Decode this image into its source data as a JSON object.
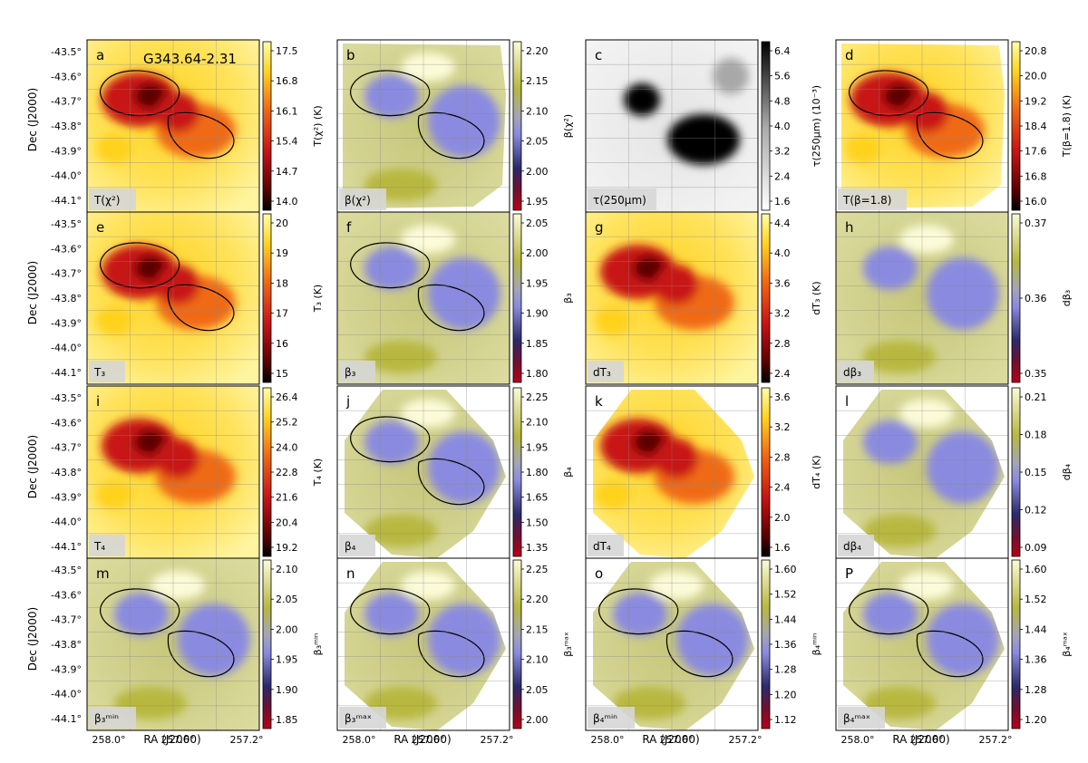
{
  "figure": {
    "source_name": "G343.64-2.31",
    "x_label": "RA (J2000)",
    "y_label": "Dec (J2000)",
    "x_ticks": [
      "258.0°",
      "257.6°",
      "257.2°"
    ],
    "y_ticks": [
      "-43.5°",
      "-43.6°",
      "-43.7°",
      "-43.8°",
      "-43.9°",
      "-44.0°",
      "-44.1°"
    ]
  },
  "chart_data": [
    {
      "type": "heatmap",
      "letter": "a",
      "box_label": "T(χ²)",
      "colorbar_label": "T(χ²) (K)",
      "colormap": "hot",
      "colorbar_ticks": [
        "17.5",
        "16.8",
        "16.1",
        "15.4",
        "14.7",
        "14.0"
      ],
      "contours": true
    },
    {
      "type": "heatmap",
      "letter": "b",
      "box_label": "β(χ²)",
      "colorbar_label": "β(χ²)",
      "colormap": "beta",
      "colorbar_ticks": [
        "2.20",
        "2.15",
        "2.10",
        "2.05",
        "2.00",
        "1.95"
      ],
      "contours": true
    },
    {
      "type": "heatmap",
      "letter": "c",
      "box_label": "τ(250μm)",
      "colorbar_label": "τ(250μm) (10⁻³)",
      "colormap": "gray",
      "colorbar_ticks": [
        "6.4",
        "5.6",
        "4.8",
        "4.0",
        "3.2",
        "2.4",
        "1.6"
      ],
      "contours": false
    },
    {
      "type": "heatmap",
      "letter": "d",
      "box_label": "T(β=1.8)",
      "colorbar_label": "T(β=1.8) (K)",
      "colormap": "hot",
      "colorbar_ticks": [
        "20.8",
        "20.0",
        "19.2",
        "18.4",
        "17.6",
        "16.8",
        "16.0"
      ],
      "contours": true
    },
    {
      "type": "heatmap",
      "letter": "e",
      "box_label": "T₃",
      "colorbar_label": "T₃ (K)",
      "colormap": "hot",
      "colorbar_ticks": [
        "20",
        "19",
        "18",
        "17",
        "16",
        "15"
      ],
      "contours": true
    },
    {
      "type": "heatmap",
      "letter": "f",
      "box_label": "β₃",
      "colorbar_label": "β₃",
      "colormap": "beta",
      "colorbar_ticks": [
        "2.05",
        "2.00",
        "1.95",
        "1.90",
        "1.85",
        "1.80"
      ],
      "contours": true
    },
    {
      "type": "heatmap",
      "letter": "g",
      "box_label": "dT₃",
      "colorbar_label": "dT₃ (K)",
      "colormap": "hot",
      "colorbar_ticks": [
        "4.4",
        "4.0",
        "3.6",
        "3.2",
        "2.8",
        "2.4"
      ],
      "contours": false
    },
    {
      "type": "heatmap",
      "letter": "h",
      "box_label": "dβ₃",
      "colorbar_label": "dβ₃",
      "colormap": "beta",
      "colorbar_ticks": [
        "0.37",
        "0.36",
        "0.35"
      ],
      "contours": false
    },
    {
      "type": "heatmap",
      "letter": "i",
      "box_label": "T₄",
      "colorbar_label": "T₄ (K)",
      "colormap": "hot",
      "colorbar_ticks": [
        "26.4",
        "25.2",
        "24.0",
        "22.8",
        "21.6",
        "20.4",
        "19.2"
      ],
      "contours": false
    },
    {
      "type": "heatmap",
      "letter": "j",
      "box_label": "β₄",
      "colorbar_label": "β₄",
      "colormap": "beta",
      "colorbar_ticks": [
        "2.25",
        "2.10",
        "1.95",
        "1.80",
        "1.65",
        "1.50",
        "1.35"
      ],
      "contours": true
    },
    {
      "type": "heatmap",
      "letter": "k",
      "box_label": "dT₄",
      "colorbar_label": "dT₄ (K)",
      "colormap": "hot",
      "colorbar_ticks": [
        "3.6",
        "3.2",
        "2.8",
        "2.4",
        "2.0",
        "1.6"
      ],
      "contours": false
    },
    {
      "type": "heatmap",
      "letter": "l",
      "box_label": "dβ₄",
      "colorbar_label": "dβ₄",
      "colormap": "beta",
      "colorbar_ticks": [
        "0.21",
        "0.18",
        "0.15",
        "0.12",
        "0.09"
      ],
      "contours": false
    },
    {
      "type": "heatmap",
      "letter": "m",
      "box_label": "β₃ᵐⁱⁿ",
      "colorbar_label": "β₃ᵐⁱⁿ",
      "colormap": "beta",
      "colorbar_ticks": [
        "2.10",
        "2.05",
        "2.00",
        "1.95",
        "1.90",
        "1.85"
      ],
      "contours": true
    },
    {
      "type": "heatmap",
      "letter": "n",
      "box_label": "β₃ᵐᵃˣ",
      "colorbar_label": "β₃ᵐᵃˣ",
      "colormap": "beta",
      "colorbar_ticks": [
        "2.25",
        "2.20",
        "2.15",
        "2.10",
        "2.05",
        "2.00"
      ],
      "contours": true
    },
    {
      "type": "heatmap",
      "letter": "o",
      "box_label": "β₄ᵐⁱⁿ",
      "colorbar_label": "β₄ᵐⁱⁿ",
      "colormap": "beta",
      "colorbar_ticks": [
        "1.60",
        "1.52",
        "1.44",
        "1.36",
        "1.28",
        "1.20",
        "1.12"
      ],
      "contours": true
    },
    {
      "type": "heatmap",
      "letter": "P",
      "box_label": "β₄ᵐᵃˣ",
      "colorbar_label": "β₄ᵐᵃˣ",
      "colormap": "beta",
      "colorbar_ticks": [
        "1.60",
        "1.52",
        "1.44",
        "1.36",
        "1.28",
        "1.20"
      ],
      "contours": true
    }
  ]
}
